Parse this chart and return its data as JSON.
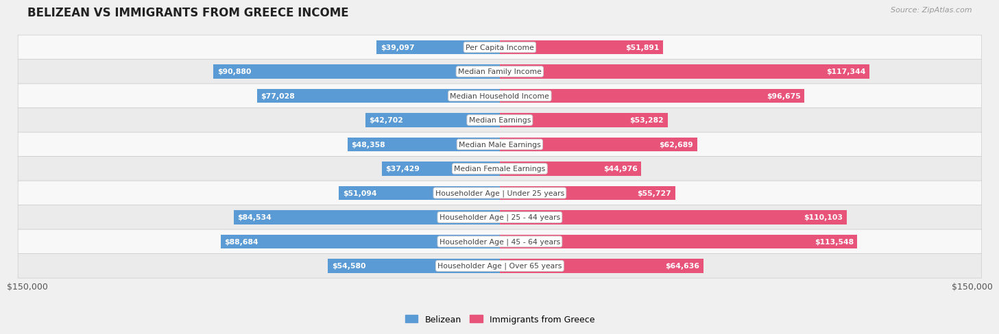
{
  "title": "BELIZEAN VS IMMIGRANTS FROM GREECE INCOME",
  "source": "Source: ZipAtlas.com",
  "categories": [
    "Per Capita Income",
    "Median Family Income",
    "Median Household Income",
    "Median Earnings",
    "Median Male Earnings",
    "Median Female Earnings",
    "Householder Age | Under 25 years",
    "Householder Age | 25 - 44 years",
    "Householder Age | 45 - 64 years",
    "Householder Age | Over 65 years"
  ],
  "belizean_values": [
    39097,
    90880,
    77028,
    42702,
    48358,
    37429,
    51094,
    84534,
    88684,
    54580
  ],
  "greece_values": [
    51891,
    117344,
    96675,
    53282,
    62689,
    44976,
    55727,
    110103,
    113548,
    64636
  ],
  "belizean_labels": [
    "$39,097",
    "$90,880",
    "$77,028",
    "$42,702",
    "$48,358",
    "$37,429",
    "$51,094",
    "$84,534",
    "$88,684",
    "$54,580"
  ],
  "greece_labels": [
    "$51,891",
    "$117,344",
    "$96,675",
    "$53,282",
    "$62,689",
    "$44,976",
    "$55,727",
    "$110,103",
    "$113,548",
    "$64,636"
  ],
  "belizean_color_light": "#adc8e8",
  "belizean_color_dark": "#5b9bd5",
  "greece_color_light": "#f5b8cc",
  "greece_color_dark": "#e8537a",
  "max_val": 150000,
  "xlabel_left": "$150,000",
  "xlabel_right": "$150,000",
  "legend_belizean": "Belizean",
  "legend_greece": "Immigrants from Greece",
  "bg_color": "#f0f0f0",
  "row_bg_even": "#f8f8f8",
  "row_bg_odd": "#ebebeb"
}
